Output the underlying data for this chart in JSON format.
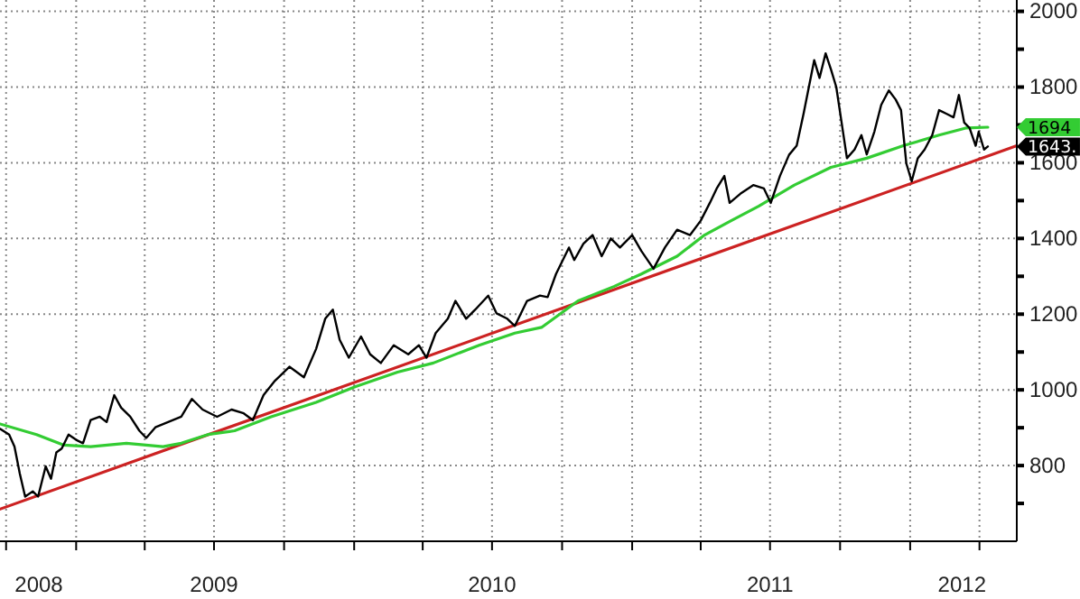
{
  "chart_data": {
    "type": "line",
    "xlim": [
      "2008-09-23",
      "2012-05-20"
    ],
    "ylim": [
      600,
      2030
    ],
    "xticks": [
      {
        "value": "2008-10-01",
        "label": null
      },
      {
        "value": "2009-01-01",
        "label": null
      },
      {
        "value": "2009-04-01",
        "label": null
      },
      {
        "value": "2009-07-01",
        "label": null
      },
      {
        "value": "2009-10-01",
        "label": null
      },
      {
        "value": "2010-01-01",
        "label": null
      },
      {
        "value": "2010-04-01",
        "label": null
      },
      {
        "value": "2010-07-01",
        "label": null
      },
      {
        "value": "2010-10-01",
        "label": null
      },
      {
        "value": "2011-01-01",
        "label": null
      },
      {
        "value": "2011-04-01",
        "label": null
      },
      {
        "value": "2011-07-01",
        "label": null
      },
      {
        "value": "2011-10-01",
        "label": null
      },
      {
        "value": "2012-01-01",
        "label": null
      },
      {
        "value": "2012-04-01",
        "label": null
      },
      {
        "value": "2008-11-13",
        "label": "2008"
      },
      {
        "value": "2009-07-01",
        "label": "2009"
      },
      {
        "value": "2010-07-01",
        "label": "2010"
      },
      {
        "value": "2011-07-01",
        "label": "2011"
      },
      {
        "value": "2012-03-09",
        "label": "2012"
      }
    ],
    "yticks": [
      {
        "value": 700,
        "label": null
      },
      800,
      {
        "value": 900,
        "label": null
      },
      1000,
      {
        "value": 1100,
        "label": null
      },
      1200,
      {
        "value": 1300,
        "label": null
      },
      1400,
      {
        "value": 1500,
        "label": null
      },
      1600,
      {
        "value": 1700,
        "label": null
      },
      1800,
      {
        "value": 1900,
        "label": null
      },
      2000
    ],
    "grid": true,
    "series": [
      {
        "color": "#000000",
        "x": [
          "2008-09-23",
          "2008-10-05",
          "2008-10-12",
          "2008-10-19",
          "2008-10-26",
          "2008-11-05",
          "2008-11-12",
          "2008-11-22",
          "2008-11-29",
          "2008-12-06",
          "2008-12-13",
          "2008-12-22",
          "2009-01-01",
          "2009-01-10",
          "2009-01-20",
          "2009-02-01",
          "2009-02-10",
          "2009-02-20",
          "2009-03-01",
          "2009-03-13",
          "2009-03-25",
          "2009-04-03",
          "2009-04-15",
          "2009-05-19",
          "2009-06-02",
          "2009-06-16",
          "2009-07-05",
          "2009-07-24",
          "2009-08-09",
          "2009-08-21",
          "2009-09-04",
          "2009-09-19",
          "2009-10-08",
          "2009-10-27",
          "2009-11-12",
          "2009-11-24",
          "2009-12-04",
          "2009-12-13",
          "2009-12-25",
          "2010-01-10",
          "2010-01-22",
          "2010-02-05",
          "2010-02-22",
          "2010-03-13",
          "2010-03-27",
          "2010-04-06",
          "2010-04-18",
          "2010-05-04",
          "2010-05-14",
          "2010-05-28",
          "2010-06-09",
          "2010-06-26",
          "2010-07-07",
          "2010-07-21",
          "2010-07-31",
          "2010-08-16",
          "2010-09-02",
          "2010-09-12",
          "2010-09-23",
          "2010-10-10",
          "2010-10-17",
          "2010-10-29",
          "2010-11-10",
          "2010-11-22",
          "2010-12-04",
          "2010-12-16",
          "2011-01-01",
          "2011-01-13",
          "2011-01-29",
          "2011-02-13",
          "2011-03-01",
          "2011-03-18",
          "2011-04-01",
          "2011-04-13",
          "2011-04-22",
          "2011-05-02",
          "2011-05-09",
          "2011-05-23",
          "2011-06-09",
          "2011-06-23",
          "2011-07-02",
          "2011-07-14",
          "2011-07-26",
          "2011-08-05",
          "2011-08-14",
          "2011-08-21",
          "2011-08-28",
          "2011-09-04",
          "2011-09-12",
          "2011-09-19",
          "2011-09-26",
          "2011-10-03",
          "2011-10-10",
          "2011-10-20",
          "2011-10-29",
          "2011-11-05",
          "2011-11-15",
          "2011-11-24",
          "2011-12-04",
          "2011-12-13",
          "2011-12-20",
          "2011-12-27",
          "2012-01-03",
          "2012-01-11",
          "2012-01-20",
          "2012-01-30",
          "2012-02-08",
          "2012-02-18",
          "2012-02-27",
          "2012-03-05",
          "2012-03-12",
          "2012-03-19",
          "2012-03-27",
          "2012-03-31",
          "2012-04-07",
          "2012-04-12"
        ],
        "values": [
          897,
          882,
          850,
          779,
          718,
          732,
          718,
          798,
          765,
          835,
          845,
          882,
          868,
          859,
          920,
          929,
          915,
          986,
          953,
          929,
          892,
          873,
          901,
          929,
          976,
          948,
          929,
          948,
          938,
          920,
          986,
          1024,
          1061,
          1033,
          1108,
          1188,
          1212,
          1132,
          1085,
          1141,
          1094,
          1071,
          1118,
          1094,
          1118,
          1085,
          1150,
          1188,
          1235,
          1188,
          1212,
          1249,
          1202,
          1188,
          1169,
          1235,
          1249,
          1245,
          1306,
          1376,
          1343,
          1386,
          1409,
          1353,
          1400,
          1376,
          1409,
          1367,
          1320,
          1376,
          1423,
          1409,
          1447,
          1494,
          1532,
          1565,
          1494,
          1518,
          1541,
          1532,
          1494,
          1565,
          1621,
          1645,
          1729,
          1800,
          1871,
          1824,
          1889,
          1847,
          1800,
          1706,
          1612,
          1635,
          1673,
          1622,
          1682,
          1753,
          1791,
          1767,
          1739,
          1598,
          1551,
          1612,
          1635,
          1673,
          1739,
          1729,
          1720,
          1779,
          1706,
          1692,
          1645,
          1682,
          1635,
          1643
        ]
      },
      {
        "color": "#33cc33",
        "x": [
          "2008-09-23",
          "2008-11-10",
          "2008-12-16",
          "2009-01-20",
          "2009-03-08",
          "2009-04-25",
          "2009-05-19",
          "2009-06-23",
          "2009-07-28",
          "2009-09-14",
          "2009-11-12",
          "2010-01-03",
          "2010-02-27",
          "2010-04-15",
          "2010-06-14",
          "2010-07-31",
          "2010-09-04",
          "2010-10-22",
          "2010-12-08",
          "2011-01-13",
          "2011-03-01",
          "2011-04-06",
          "2011-05-11",
          "2011-06-16",
          "2011-08-02",
          "2011-09-19",
          "2011-11-05",
          "2011-12-23",
          "2012-02-08",
          "2012-03-15",
          "2012-04-12"
        ],
        "values": [
          910,
          882,
          854,
          850,
          859,
          850,
          859,
          882,
          892,
          929,
          967,
          1009,
          1047,
          1071,
          1118,
          1150,
          1165,
          1235,
          1273,
          1306,
          1353,
          1409,
          1447,
          1485,
          1541,
          1588,
          1612,
          1645,
          1673,
          1692,
          1694
        ]
      },
      {
        "type": "line",
        "color": "#cc2222",
        "x": [
          "2008-09-23",
          "2012-05-20"
        ],
        "values": [
          685,
          1645
        ]
      }
    ],
    "annotations": [
      {
        "text": "1694",
        "x": "2012-04-12",
        "y": 1694
      },
      {
        "text": "1643.",
        "x": "2012-04-12",
        "y": 1643
      }
    ]
  }
}
